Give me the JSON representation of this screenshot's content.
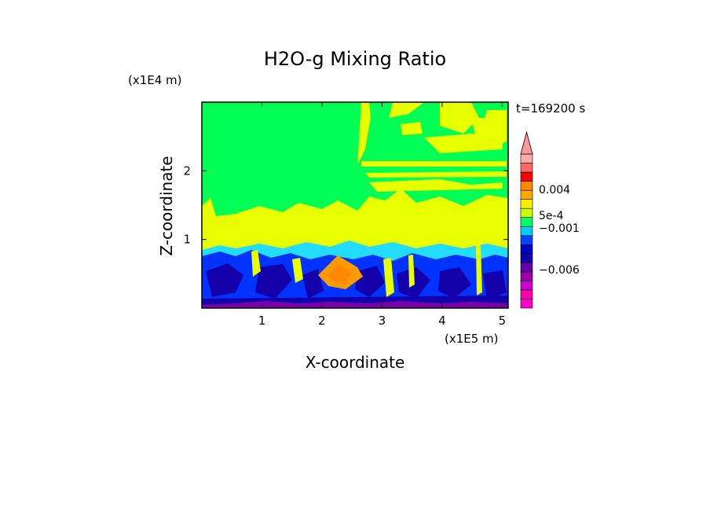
{
  "chart_data": {
    "type": "heatmap",
    "title": "H2O-g Mixing Ratio",
    "xlabel": "X-coordinate",
    "ylabel": "Z-coordinate",
    "x_unit": "(x1E5 m)",
    "y_unit": "(x1E4 m)",
    "time_label": "t=169200 s",
    "xlim": [
      0,
      5.1
    ],
    "ylim": [
      0,
      3.0
    ],
    "x_ticks": [
      "1",
      "2",
      "3",
      "4",
      "5"
    ],
    "y_ticks": [
      "1",
      "2"
    ],
    "colorbar": {
      "colors": [
        "#ff00cc",
        "#ff00aa",
        "#cc00cc",
        "#9900aa",
        "#6600aa",
        "#1100aa",
        "#0000cc",
        "#0044ff",
        "#00ccff",
        "#00ff66",
        "#ccff00",
        "#ffee00",
        "#ffaa00",
        "#ff8800",
        "#ff0000",
        "#ff6666",
        "#ffaaaa"
      ],
      "labels": [
        "0.004",
        "5e-4",
        "−0.001",
        "−0.006"
      ],
      "extend": "top"
    },
    "regions": {
      "upper": "green",
      "mid_band": "yellow",
      "lower": "blue",
      "feature": "orange"
    }
  }
}
